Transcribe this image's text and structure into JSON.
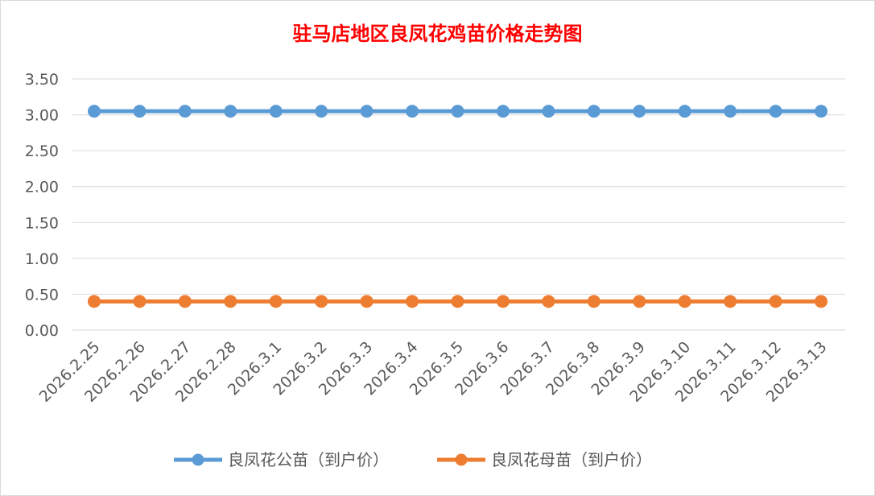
{
  "chart_data": {
    "type": "line",
    "title": "驻马店地区良凤花鸡苗价格走势图",
    "xlabel": "",
    "ylabel": "",
    "categories": [
      "2026.2.25",
      "2026.2.26",
      "2026.2.27",
      "2026.2.28",
      "2026.3.1",
      "2026.3.2",
      "2026.3.3",
      "2026.3.4",
      "2026.3.5",
      "2026.3.6",
      "2026.3.7",
      "2026.3.8",
      "2026.3.9",
      "2026.3.10",
      "2026.3.11",
      "2026.3.12",
      "2026.3.13"
    ],
    "ylim": [
      0,
      3.5
    ],
    "yticks": [
      "0.00",
      "0.50",
      "1.00",
      "1.50",
      "2.00",
      "2.50",
      "3.00",
      "3.50"
    ],
    "grid": true,
    "legend_position": "bottom",
    "series": [
      {
        "name": "良凤花公苗（到户价）",
        "color": "#5b9bd5",
        "values": [
          3.05,
          3.05,
          3.05,
          3.05,
          3.05,
          3.05,
          3.05,
          3.05,
          3.05,
          3.05,
          3.05,
          3.05,
          3.05,
          3.05,
          3.05,
          3.05,
          3.05
        ]
      },
      {
        "name": "良凤花母苗（到户价）",
        "color": "#ed7d31",
        "values": [
          0.4,
          0.4,
          0.4,
          0.4,
          0.4,
          0.4,
          0.4,
          0.4,
          0.4,
          0.4,
          0.4,
          0.4,
          0.4,
          0.4,
          0.4,
          0.4,
          0.4
        ]
      }
    ]
  }
}
